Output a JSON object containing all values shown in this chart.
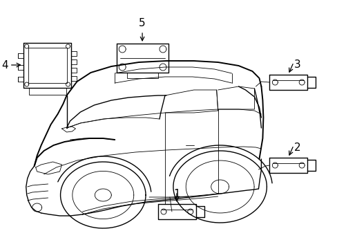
{
  "background_color": "#ffffff",
  "line_color": "#000000",
  "figure_width": 4.89,
  "figure_height": 3.6,
  "dpi": 100,
  "car_color": "#000000",
  "lw_main": 1.0,
  "lw_thin": 0.6,
  "lw_thick": 1.4
}
